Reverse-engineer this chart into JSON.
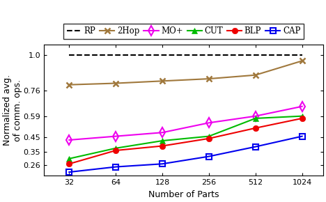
{
  "x": [
    32,
    64,
    128,
    256,
    512,
    1024
  ],
  "RP": [
    1.0,
    1.0,
    1.0,
    1.0,
    1.0,
    1.0
  ],
  "2Hop": [
    0.8,
    0.81,
    0.825,
    0.84,
    0.865,
    0.96
  ],
  "MO+": [
    0.43,
    0.455,
    0.48,
    0.545,
    0.59,
    0.655
  ],
  "CUT": [
    0.305,
    0.375,
    0.425,
    0.455,
    0.575,
    0.59
  ],
  "BLP": [
    0.27,
    0.36,
    0.39,
    0.44,
    0.51,
    0.575
  ],
  "CAP": [
    0.215,
    0.25,
    0.27,
    0.32,
    0.385,
    0.455
  ],
  "colors": {
    "RP": "#000000",
    "2Hop": "#a0783c",
    "MO+": "#ee00ee",
    "CUT": "#00bb00",
    "BLP": "#ee0000",
    "CAP": "#0000ee"
  },
  "xlabel": "Number of Parts",
  "ylabel": "Normalized avg.\nof comm. ops.",
  "yticks": [
    0.26,
    0.35,
    0.45,
    0.59,
    0.76,
    1.0
  ],
  "ylim": [
    0.19,
    1.07
  ],
  "axis_fontsize": 9,
  "tick_fontsize": 8,
  "legend_fontsize": 8.5
}
